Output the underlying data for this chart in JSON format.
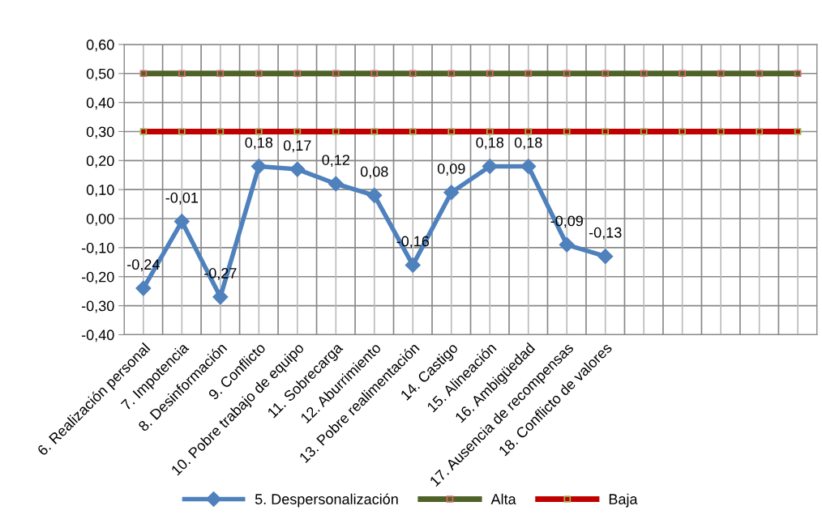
{
  "chart_data": {
    "type": "line",
    "categories": [
      "6. Realización personal",
      "7. Impotencia",
      "8. Desinformación",
      "9. Conflicto",
      "10. Pobre trabajo de equipo",
      "11. Sobrecarga",
      "12. Aburrimiento",
      "13. Pobre realimentación",
      "14. Castigo",
      "15. Alineación",
      "16. Ambigüedad",
      "17. Ausencia de recompensas",
      "18. Conflicto de valores",
      null,
      null,
      null,
      null,
      null
    ],
    "series": [
      {
        "name": "5. Despersonalización",
        "color": "#4f81bd",
        "marker": "diamond",
        "values": [
          -0.24,
          -0.01,
          -0.27,
          0.18,
          0.17,
          0.12,
          0.08,
          -0.16,
          0.09,
          0.18,
          0.18,
          -0.09,
          -0.13,
          null,
          null,
          null,
          null,
          null
        ],
        "value_labels": [
          "-0,24",
          "-0,01",
          "-0,27",
          "0,18",
          "0,17",
          "0,12",
          "0,08",
          "-0,16",
          "0,09",
          "0,18",
          "0,18",
          "-0,09",
          "-0,13",
          null,
          null,
          null,
          null,
          null
        ]
      },
      {
        "name": "Alta",
        "color": "#4f6228",
        "marker": "square",
        "values": [
          0.5,
          0.5,
          0.5,
          0.5,
          0.5,
          0.5,
          0.5,
          0.5,
          0.5,
          0.5,
          0.5,
          0.5,
          0.5,
          0.5,
          0.5,
          0.5,
          0.5,
          0.5
        ]
      },
      {
        "name": "Baja",
        "color": "#c00000",
        "marker": "square",
        "values": [
          0.3,
          0.3,
          0.3,
          0.3,
          0.3,
          0.3,
          0.3,
          0.3,
          0.3,
          0.3,
          0.3,
          0.3,
          0.3,
          0.3,
          0.3,
          0.3,
          0.3,
          0.3
        ]
      }
    ],
    "ylim": [
      -0.4,
      0.6
    ],
    "yticks": [
      {
        "value": -0.4,
        "label": "-0,40"
      },
      {
        "value": -0.3,
        "label": "-0,30"
      },
      {
        "value": -0.2,
        "label": "-0,20"
      },
      {
        "value": -0.1,
        "label": "-0,10"
      },
      {
        "value": 0.0,
        "label": "0,00"
      },
      {
        "value": 0.1,
        "label": "0,10"
      },
      {
        "value": 0.2,
        "label": "0,20"
      },
      {
        "value": 0.3,
        "label": "0,30"
      },
      {
        "value": 0.4,
        "label": "0,40"
      },
      {
        "value": 0.5,
        "label": "0,50"
      },
      {
        "value": 0.6,
        "label": "0,60"
      }
    ],
    "grid": true,
    "legend": "bottom"
  }
}
